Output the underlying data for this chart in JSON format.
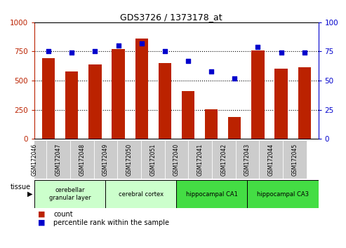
{
  "title": "GDS3726 / 1373178_at",
  "samples": [
    "GSM172046",
    "GSM172047",
    "GSM172048",
    "GSM172049",
    "GSM172050",
    "GSM172051",
    "GSM172040",
    "GSM172041",
    "GSM172042",
    "GSM172043",
    "GSM172044",
    "GSM172045"
  ],
  "counts": [
    690,
    580,
    640,
    770,
    860,
    650,
    410,
    255,
    185,
    760,
    600,
    615
  ],
  "percentiles": [
    75,
    74,
    75,
    80,
    82,
    75,
    67,
    58,
    52,
    79,
    74,
    74
  ],
  "bar_color": "#bb2200",
  "dot_color": "#0000cc",
  "ylim_left": [
    0,
    1000
  ],
  "ylim_right": [
    0,
    100
  ],
  "yticks_left": [
    0,
    250,
    500,
    750,
    1000
  ],
  "yticks_right": [
    0,
    25,
    50,
    75,
    100
  ],
  "grid_values": [
    250,
    500,
    750
  ],
  "tissue_groups": [
    {
      "label": "cerebellar\ngranular layer",
      "start": 0,
      "end": 3,
      "color": "#ccffcc"
    },
    {
      "label": "cerebral cortex",
      "start": 3,
      "end": 6,
      "color": "#ccffcc"
    },
    {
      "label": "hippocampal CA1",
      "start": 6,
      "end": 9,
      "color": "#44dd44"
    },
    {
      "label": "hippocampal CA3",
      "start": 9,
      "end": 12,
      "color": "#44dd44"
    }
  ],
  "legend_count_color": "#bb2200",
  "legend_dot_color": "#0000cc",
  "bg_color": "#ffffff",
  "sample_bg_color": "#cccccc",
  "bar_width": 0.55
}
